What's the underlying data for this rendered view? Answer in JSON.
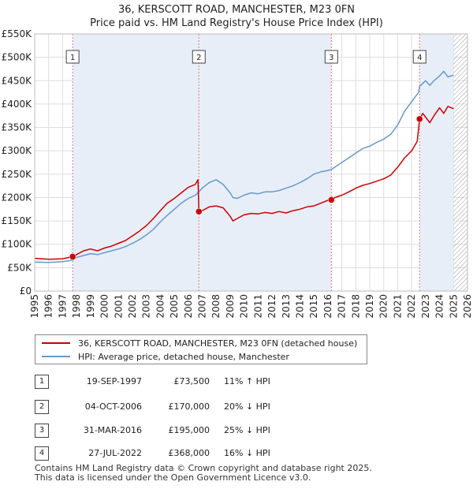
{
  "title": {
    "line1": "36, KERSCOTT ROAD, MANCHESTER, M23 0FN",
    "line2": "Price paid vs. HM Land Registry's House Price Index (HPI)"
  },
  "legend": {
    "property_label": "36, KERSCOTT ROAD, MANCHESTER, M23 0FN (detached house)",
    "hpi_label": "HPI: Average price, detached house, Manchester"
  },
  "colors": {
    "property": "#cc0000",
    "hpi": "#6699cc",
    "grid": "#dddddd",
    "marker_line": "#e07a7a",
    "shade": "#e8eef8"
  },
  "transactions": [
    {
      "num": "1",
      "date": "19-SEP-1997",
      "price": "£73,500",
      "hpi": "11% ↑ HPI"
    },
    {
      "num": "2",
      "date": "04-OCT-2006",
      "price": "£170,000",
      "hpi": "20% ↓ HPI"
    },
    {
      "num": "3",
      "date": "31-MAR-2016",
      "price": "£195,000",
      "hpi": "25% ↓ HPI"
    },
    {
      "num": "4",
      "date": "27-JUL-2022",
      "price": "£368,000",
      "hpi": "16% ↓ HPI"
    }
  ],
  "footer": {
    "line1": "Contains HM Land Registry data © Crown copyright and database right 2025.",
    "line2": "This data is licensed under the Open Government Licence v3.0."
  },
  "chart_data": {
    "type": "line",
    "title": "36, KERSCOTT ROAD, MANCHESTER, M23 0FN",
    "subtitle": "Price paid vs. HM Land Registry's House Price Index (HPI)",
    "xlim": [
      1995,
      2026
    ],
    "ylim": [
      0,
      550000
    ],
    "y_ticks": [
      0,
      50000,
      100000,
      150000,
      200000,
      250000,
      300000,
      350000,
      400000,
      450000,
      500000,
      550000
    ],
    "y_tick_labels": [
      "£0",
      "£50K",
      "£100K",
      "£150K",
      "£200K",
      "£250K",
      "£300K",
      "£350K",
      "£400K",
      "£450K",
      "£500K",
      "£550K"
    ],
    "x_ticks": [
      1995,
      1996,
      1997,
      1998,
      1999,
      2000,
      2001,
      2002,
      2003,
      2004,
      2005,
      2006,
      2007,
      2008,
      2009,
      2010,
      2011,
      2012,
      2013,
      2014,
      2015,
      2016,
      2017,
      2018,
      2019,
      2020,
      2021,
      2022,
      2023,
      2024,
      2025,
      2026
    ],
    "x_tick_labels": [
      "1995",
      "1996",
      "1997",
      "1998",
      "1999",
      "2000",
      "2001",
      "2002",
      "2003",
      "2004",
      "2005",
      "2006",
      "2007",
      "2008",
      "2009",
      "2010",
      "2011",
      "2012",
      "2013",
      "2014",
      "2015",
      "2016",
      "2017",
      "2018",
      "2019",
      "2020",
      "2021",
      "2022",
      "2023",
      "2024",
      "2025",
      "2026"
    ],
    "hatch_from": 2025.0,
    "sales": [
      {
        "label": "1",
        "x": 1997.72,
        "y": 73500
      },
      {
        "label": "2",
        "x": 2006.76,
        "y": 170000
      },
      {
        "label": "3",
        "x": 2016.25,
        "y": 195000
      },
      {
        "label": "4",
        "x": 2022.57,
        "y": 368000
      }
    ],
    "series": [
      {
        "name": "36, KERSCOTT ROAD, MANCHESTER, M23 0FN (detached house)",
        "x": [
          1995,
          1996,
          1997,
          1997.72,
          1998,
          1998.5,
          1999,
          1999.5,
          2000,
          2000.5,
          2001,
          2001.5,
          2002,
          2002.5,
          2003,
          2003.5,
          2004,
          2004.5,
          2005,
          2005.5,
          2006,
          2006.5,
          2006.7,
          2006.76,
          2007,
          2007.5,
          2008,
          2008.5,
          2009,
          2009.2,
          2009.5,
          2010,
          2010.5,
          2011,
          2011.5,
          2012,
          2012.5,
          2013,
          2013.5,
          2014,
          2014.5,
          2015,
          2015.5,
          2016,
          2016.25,
          2016.5,
          2017,
          2017.5,
          2018,
          2018.5,
          2019,
          2019.5,
          2020,
          2020.5,
          2021,
          2021.5,
          2022,
          2022.4,
          2022.57,
          2022.8,
          2023,
          2023.3,
          2023.6,
          2024,
          2024.3,
          2024.6,
          2025
        ],
        "y": [
          70000,
          68000,
          69000,
          73500,
          78000,
          86000,
          90000,
          86000,
          92000,
          96000,
          102000,
          108000,
          118000,
          128000,
          140000,
          155000,
          172000,
          188000,
          198000,
          210000,
          222000,
          228000,
          238000,
          170000,
          172000,
          180000,
          182000,
          178000,
          160000,
          150000,
          155000,
          163000,
          166000,
          165000,
          168000,
          166000,
          170000,
          167000,
          172000,
          175000,
          180000,
          182000,
          188000,
          194000,
          195000,
          200000,
          205000,
          212000,
          220000,
          226000,
          230000,
          235000,
          240000,
          248000,
          265000,
          285000,
          300000,
          320000,
          368000,
          380000,
          372000,
          360000,
          375000,
          392000,
          380000,
          395000,
          390000
        ]
      },
      {
        "name": "HPI: Average price, detached house, Manchester",
        "x": [
          1995,
          1996,
          1997,
          1997.72,
          1998,
          1998.5,
          1999,
          1999.5,
          2000,
          2000.5,
          2001,
          2001.5,
          2002,
          2002.5,
          2003,
          2003.5,
          2004,
          2004.5,
          2005,
          2005.5,
          2006,
          2006.5,
          2006.76,
          2007,
          2007.5,
          2008,
          2008.5,
          2009,
          2009.2,
          2009.5,
          2010,
          2010.5,
          2011,
          2011.5,
          2012,
          2012.5,
          2013,
          2013.5,
          2014,
          2014.5,
          2015,
          2015.5,
          2016,
          2016.25,
          2016.5,
          2017,
          2017.5,
          2018,
          2018.5,
          2019,
          2019.5,
          2020,
          2020.5,
          2021,
          2021.5,
          2022,
          2022.5,
          2022.57,
          2023,
          2023.3,
          2023.6,
          2024,
          2024.3,
          2024.6,
          2025
        ],
        "y": [
          62000,
          61000,
          63000,
          66000,
          72000,
          76000,
          80000,
          78000,
          82000,
          86000,
          90000,
          95000,
          102000,
          110000,
          120000,
          132000,
          148000,
          162000,
          175000,
          188000,
          198000,
          205000,
          212000,
          220000,
          232000,
          238000,
          228000,
          210000,
          200000,
          198000,
          205000,
          210000,
          208000,
          212000,
          212000,
          215000,
          220000,
          225000,
          232000,
          240000,
          250000,
          255000,
          258000,
          260000,
          265000,
          275000,
          285000,
          295000,
          305000,
          310000,
          318000,
          325000,
          335000,
          355000,
          385000,
          405000,
          425000,
          438000,
          450000,
          440000,
          450000,
          460000,
          470000,
          458000,
          462000
        ]
      }
    ]
  }
}
